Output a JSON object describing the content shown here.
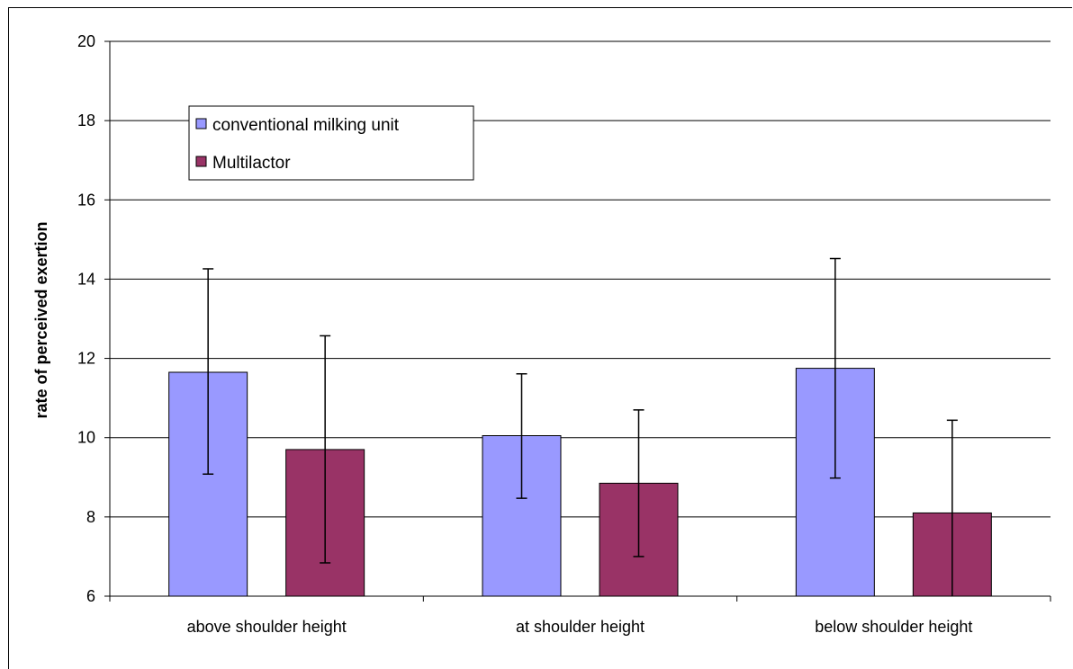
{
  "chart_data": {
    "type": "bar",
    "title": "",
    "xlabel": "",
    "ylabel": "rate of perceived exertion",
    "ylim": [
      6,
      20
    ],
    "yticks": [
      6,
      8,
      10,
      12,
      14,
      16,
      18,
      20
    ],
    "grid": true,
    "legend_position": "top-left",
    "categories": [
      "above shoulder height",
      "at shoulder height",
      "below shoulder height"
    ],
    "series": [
      {
        "name": "conventional milking unit",
        "color": "#9999ff",
        "values": [
          11.65,
          10.05,
          11.75
        ],
        "error_low": [
          9.08,
          8.47,
          8.98
        ],
        "error_high": [
          14.26,
          11.61,
          14.52
        ]
      },
      {
        "name": "Multilactor",
        "color": "#993366",
        "values": [
          9.7,
          8.85,
          8.1
        ],
        "error_low": [
          6.84,
          7.0,
          5.95
        ],
        "error_high": [
          12.57,
          10.7,
          10.44
        ]
      }
    ]
  }
}
